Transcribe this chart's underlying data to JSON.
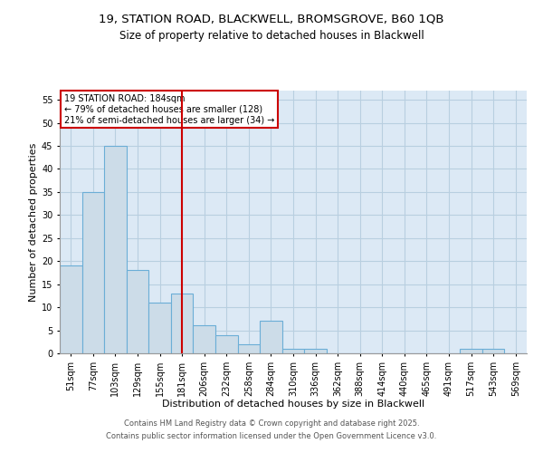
{
  "title1": "19, STATION ROAD, BLACKWELL, BROMSGROVE, B60 1QB",
  "title2": "Size of property relative to detached houses in Blackwell",
  "xlabel": "Distribution of detached houses by size in Blackwell",
  "ylabel": "Number of detached properties",
  "categories": [
    "51sqm",
    "77sqm",
    "103sqm",
    "129sqm",
    "155sqm",
    "181sqm",
    "206sqm",
    "232sqm",
    "258sqm",
    "284sqm",
    "310sqm",
    "336sqm",
    "362sqm",
    "388sqm",
    "414sqm",
    "440sqm",
    "465sqm",
    "491sqm",
    "517sqm",
    "543sqm",
    "569sqm"
  ],
  "values": [
    19,
    35,
    45,
    18,
    11,
    13,
    6,
    4,
    2,
    7,
    1,
    1,
    0,
    0,
    0,
    0,
    0,
    0,
    1,
    1,
    0
  ],
  "bar_color": "#ccdce8",
  "bar_edge_color": "#6baed6",
  "grid_color": "#b8cfe0",
  "ax_bg_color": "#dce9f5",
  "fig_bg_color": "#ffffff",
  "vline_color": "#cc0000",
  "vline_x_index": 5,
  "annotation_text": "19 STATION ROAD: 184sqm\n← 79% of detached houses are smaller (128)\n21% of semi-detached houses are larger (34) →",
  "annotation_box_color": "#ffffff",
  "annotation_box_edge": "#cc0000",
  "ylim": [
    0,
    57
  ],
  "yticks": [
    0,
    5,
    10,
    15,
    20,
    25,
    30,
    35,
    40,
    45,
    50,
    55
  ],
  "footer1": "Contains HM Land Registry data © Crown copyright and database right 2025.",
  "footer2": "Contains public sector information licensed under the Open Government Licence v3.0.",
  "title_fontsize": 9.5,
  "subtitle_fontsize": 8.5,
  "axis_label_fontsize": 8,
  "tick_fontsize": 7,
  "annotation_fontsize": 7,
  "footer_fontsize": 6
}
